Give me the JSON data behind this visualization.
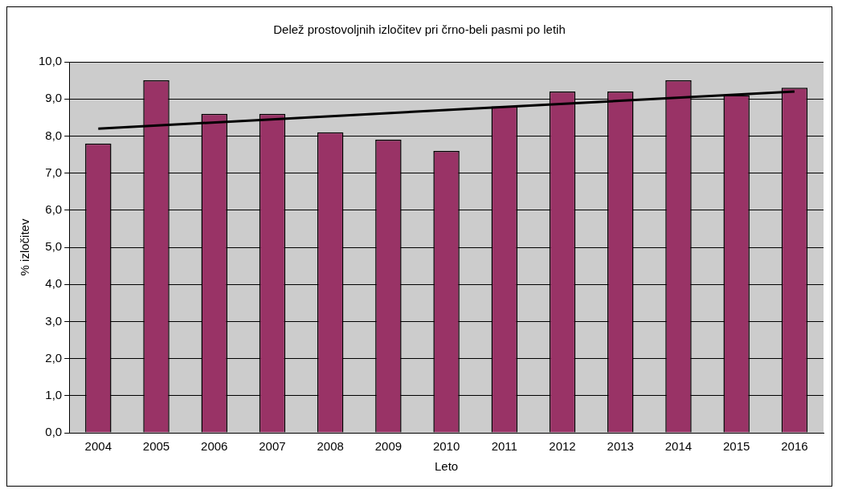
{
  "chart_data": {
    "type": "bar",
    "title": "Delež prostovoljnih izločitev pri črno-beli pasmi po letih",
    "xlabel": "Leto",
    "ylabel": "% izločitev",
    "categories": [
      "2004",
      "2005",
      "2006",
      "2007",
      "2008",
      "2009",
      "2010",
      "2011",
      "2012",
      "2013",
      "2014",
      "2015",
      "2016"
    ],
    "series": [
      {
        "color": "#993366",
        "values": [
          7.8,
          9.5,
          8.6,
          8.6,
          8.1,
          7.9,
          7.6,
          8.8,
          9.2,
          9.2,
          9.5,
          9.1,
          9.3
        ]
      },
      {
        "type": "line",
        "color": "#000000",
        "values": [
          8.2,
          null,
          null,
          null,
          null,
          null,
          null,
          null,
          null,
          null,
          null,
          null,
          9.2
        ]
      }
    ],
    "ylim": [
      0,
      10
    ],
    "yticks": [
      {
        "value": 0,
        "label": "0,0"
      },
      {
        "value": 1,
        "label": "1,0"
      },
      {
        "value": 2,
        "label": "2,0"
      },
      {
        "value": 3,
        "label": "3,0"
      },
      {
        "value": 4,
        "label": "4,0"
      },
      {
        "value": 5,
        "label": "5,0"
      },
      {
        "value": 6,
        "label": "6,0"
      },
      {
        "value": 7,
        "label": "7,0"
      },
      {
        "value": 8,
        "label": "8,0"
      },
      {
        "value": 9,
        "label": "9,0"
      },
      {
        "value": 10,
        "label": "10,0"
      }
    ],
    "grid": "y",
    "legend": false,
    "marker": "none"
  }
}
